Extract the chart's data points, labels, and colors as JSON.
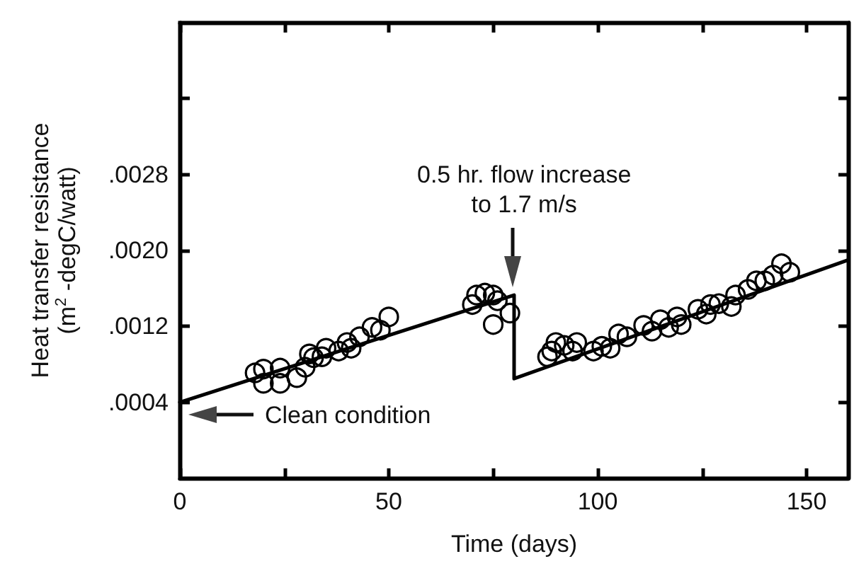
{
  "chart_data": {
    "type": "scatter",
    "xlabel": "Time (days)",
    "ylabel": "Heat transfer resistance\n(m$^{2}$ -degC/watt)",
    "xlim": [
      0,
      160
    ],
    "ylim": [
      -0.0004,
      0.0044
    ],
    "xticks": [
      0,
      {
        "value": 25,
        "label": null
      },
      50,
      {
        "value": 75,
        "label": null
      },
      100,
      {
        "value": 125,
        "label": null
      },
      150
    ],
    "yticks": [
      {
        "value": 0.0004,
        "label": ".0004"
      },
      {
        "value": 0.0012,
        "label": ".0012"
      },
      {
        "value": 0.002,
        "label": ".0020"
      },
      {
        "value": 0.0028,
        "label": ".0028"
      },
      {
        "value": 0.0036,
        "label": null
      }
    ],
    "grid": false,
    "marker": "circle",
    "series": [
      {
        "color": "#000000",
        "x": [
          18,
          20,
          20,
          24,
          24,
          28,
          30,
          31,
          32,
          34,
          35,
          38,
          40,
          41,
          43,
          46,
          48,
          50,
          70,
          71,
          73,
          75,
          76,
          75,
          79,
          88,
          89,
          90,
          92,
          94,
          95,
          99,
          101,
          103,
          105,
          107,
          111,
          113,
          115,
          117,
          119,
          120,
          124,
          126,
          127,
          129,
          132,
          133,
          136,
          138,
          140,
          142,
          144,
          146
        ],
        "values": [
          0.00071,
          0.00075,
          0.0006,
          0.00076,
          0.0006,
          0.00066,
          0.00077,
          0.00091,
          0.00087,
          0.00088,
          0.00097,
          0.00094,
          0.00103,
          0.00097,
          0.00109,
          0.00119,
          0.00116,
          0.0013,
          0.00143,
          0.00153,
          0.00155,
          0.00153,
          0.00147,
          0.00122,
          0.00134,
          0.00088,
          0.00094,
          0.00103,
          0.001,
          0.00094,
          0.00103,
          0.00094,
          0.00099,
          0.00097,
          0.00112,
          0.00109,
          0.00121,
          0.00115,
          0.00127,
          0.00119,
          0.0013,
          0.00122,
          0.00138,
          0.00133,
          0.00143,
          0.00144,
          0.00141,
          0.00153,
          0.00159,
          0.00168,
          0.00168,
          0.00174,
          0.00186,
          0.00177
        ]
      },
      {
        "type": "line",
        "color": "#000000",
        "marker": "none",
        "line_style": "solid",
        "x": [
          0,
          80,
          80,
          160
        ],
        "values": [
          0.0004,
          0.00153,
          0.00065,
          0.0019
        ]
      }
    ],
    "annotations": [
      "0.5 hr. flow increase\nto 1.7 m/s",
      "Clean condition"
    ]
  }
}
